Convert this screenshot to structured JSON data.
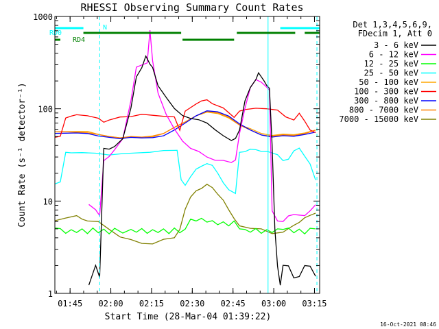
{
  "chart_data": {
    "type": "line",
    "title": "RHESSI Observing Summary Count Rates",
    "xlabel": "Start Time (28-Mar-04 01:39:22)",
    "ylabel": "Count Rate (s⁻¹ detector⁻¹)",
    "x_unit": "minutes after 01:39:22",
    "xlim": [
      0,
      97.5
    ],
    "ylim": [
      1,
      1000
    ],
    "yscale": "log",
    "x_ticks": [
      {
        "value": 5.6,
        "label": "01:45"
      },
      {
        "value": 20.6,
        "label": "02:00"
      },
      {
        "value": 35.6,
        "label": "02:15"
      },
      {
        "value": 50.6,
        "label": "02:30"
      },
      {
        "value": 65.6,
        "label": "02:45"
      },
      {
        "value": 80.6,
        "label": "03:00"
      },
      {
        "value": 95.6,
        "label": "03:15"
      }
    ],
    "y_ticks": [
      {
        "value": 1,
        "label": "1"
      },
      {
        "value": 10,
        "label": "10"
      },
      {
        "value": 100,
        "label": "100"
      },
      {
        "value": 1000,
        "label": "1000"
      }
    ],
    "legend_header": [
      "Det 1,3,4,5,6,9,",
      "FDecim 1, Att 0"
    ],
    "footer": "16-Oct-2021 08:46",
    "flags": [
      {
        "label": "RD0",
        "color": "#00ffff",
        "segments": [
          [
            0,
            10.5
          ],
          [
            83,
            97.5
          ]
        ]
      },
      {
        "label": "RD4",
        "color": "#008000",
        "segments": [
          [
            0,
            2
          ]
        ]
      },
      {
        "label": "N",
        "color": "#00ffff",
        "segments": []
      },
      {
        "label": "",
        "color": "#008000",
        "segments": [
          [
            10.5,
            46.5
          ],
          [
            67,
            88.5
          ],
          [
            92,
            97.5
          ]
        ]
      },
      {
        "label": "",
        "color": "#008000",
        "segments": [
          [
            47,
            66
          ]
        ]
      }
    ],
    "vertical_markers": [
      {
        "x": 16.5,
        "style": "dashed",
        "color": "#00ffff"
      },
      {
        "x": 78.5,
        "style": "solid",
        "color": "#00ffff"
      },
      {
        "x": 96.5,
        "style": "dashed",
        "color": "#00ffff"
      }
    ],
    "series": [
      {
        "name": "3 - 6 keV",
        "color": "#000000",
        "x": [
          12.5,
          15,
          16.5,
          18,
          20,
          22,
          25,
          28,
          30,
          32,
          33.5,
          35,
          36,
          38,
          41,
          44,
          47,
          50,
          53,
          56,
          59,
          62,
          65,
          66.5,
          68,
          70,
          72,
          74,
          75,
          77,
          78,
          79,
          80,
          81,
          82,
          83,
          84,
          86,
          88,
          90,
          92,
          94,
          96
        ],
        "y": [
          1.2,
          2,
          1.5,
          38,
          36,
          39,
          48,
          100,
          220,
          280,
          380,
          300,
          280,
          180,
          130,
          100,
          85,
          80,
          75,
          70,
          60,
          50,
          45,
          48,
          60,
          120,
          170,
          210,
          240,
          200,
          180,
          170,
          40,
          5,
          2,
          1.2,
          2,
          2,
          1.5,
          1.5,
          2,
          2,
          1.5
        ]
      },
      {
        "name": "6 - 12 keV",
        "color": "#ff00ff",
        "x": [
          12.5,
          15,
          16.5,
          18,
          20,
          22,
          25,
          28,
          30,
          32,
          34,
          35,
          36,
          38,
          41,
          44,
          47,
          50,
          53,
          56,
          59,
          62,
          65,
          66.5,
          68,
          70,
          72,
          74,
          76,
          78,
          79,
          80,
          82,
          84,
          86,
          88,
          90,
          92,
          94,
          96
        ],
        "y": [
          9,
          8,
          7,
          28,
          30,
          36,
          48,
          120,
          280,
          300,
          320,
          700,
          330,
          150,
          85,
          60,
          45,
          38,
          34,
          30,
          28,
          27,
          26,
          28,
          55,
          100,
          170,
          210,
          190,
          170,
          160,
          8,
          6,
          6,
          7,
          7,
          7,
          7,
          8,
          9
        ]
      },
      {
        "name": "12 - 25 keV",
        "color": "#00ff00",
        "x": [
          0,
          2,
          4,
          6,
          8,
          10,
          12,
          14,
          16,
          18,
          20,
          22,
          25,
          28,
          30,
          32,
          34,
          36,
          38,
          40,
          42,
          44,
          46,
          48,
          50,
          52,
          54,
          56,
          58,
          60,
          62,
          64,
          66,
          68,
          70,
          72,
          74,
          76,
          78,
          80,
          82,
          84,
          86,
          88,
          90,
          92,
          94,
          96
        ],
        "y": [
          5,
          5,
          4.5,
          5,
          4.5,
          5,
          4.5,
          5,
          4.5,
          5,
          4.5,
          5,
          4.5,
          5,
          4.5,
          5,
          4.5,
          5,
          4.5,
          5,
          4.5,
          5,
          4.5,
          5,
          6.5,
          6,
          6.5,
          6,
          6,
          5.5,
          6,
          5.5,
          6,
          5,
          5,
          4.5,
          5,
          4.5,
          5,
          4.5,
          5,
          5,
          5,
          4.5,
          5,
          4.5,
          5,
          5
        ]
      },
      {
        "name": "25 - 50 keV",
        "color": "#00ffff",
        "x": [
          0,
          2,
          4,
          6,
          10,
          15,
          20,
          25,
          30,
          35,
          40,
          45,
          46.5,
          48,
          50,
          52,
          54,
          56,
          58,
          60,
          62,
          64,
          66.5,
          68,
          70,
          72,
          74,
          76,
          78,
          80,
          82,
          84,
          86,
          88,
          90,
          92,
          94,
          96
        ],
        "y": [
          15,
          16,
          34,
          34,
          33,
          33,
          32,
          32,
          33,
          34,
          36,
          35,
          17,
          15,
          18,
          22,
          24,
          26,
          24,
          20,
          16,
          13,
          12,
          34,
          35,
          36,
          36,
          35,
          34,
          33,
          32,
          28,
          28,
          35,
          38,
          30,
          25,
          17
        ]
      },
      {
        "name": "50 - 100 keV",
        "color": "#ffa500",
        "x": [
          0,
          4,
          8,
          12,
          16,
          20,
          24,
          28,
          32,
          36,
          40,
          44,
          48,
          52,
          56,
          60,
          64,
          68,
          72,
          76,
          80,
          84,
          88,
          92,
          96
        ],
        "y": [
          55,
          56,
          57,
          58,
          52,
          50,
          49,
          48,
          48,
          50,
          55,
          62,
          72,
          85,
          90,
          88,
          80,
          68,
          60,
          54,
          52,
          52,
          52,
          55,
          60
        ]
      },
      {
        "name": "100 - 300 keV",
        "color": "#ff0000",
        "x": [
          0,
          2,
          4,
          6,
          8,
          12,
          16,
          18,
          20,
          24,
          28,
          32,
          36,
          40,
          44,
          46,
          48,
          52,
          54,
          56,
          58,
          62,
          66,
          68,
          70,
          74,
          78,
          82,
          85,
          88,
          90,
          92,
          94,
          96
        ],
        "y": [
          48,
          50,
          80,
          85,
          85,
          84,
          80,
          70,
          75,
          82,
          84,
          86,
          85,
          84,
          80,
          58,
          95,
          115,
          120,
          125,
          115,
          100,
          80,
          95,
          100,
          100,
          100,
          98,
          80,
          75,
          90,
          75,
          58,
          55
        ]
      },
      {
        "name": "300 - 800 keV",
        "color": "#0000ff",
        "x": [
          0,
          4,
          8,
          12,
          16,
          20,
          24,
          28,
          32,
          36,
          40,
          44,
          48,
          52,
          56,
          60,
          64,
          68,
          72,
          76,
          80,
          84,
          88,
          92,
          96
        ],
        "y": [
          53,
          54,
          55,
          55,
          50,
          49,
          48,
          48,
          48,
          49,
          52,
          58,
          70,
          85,
          93,
          92,
          84,
          70,
          58,
          52,
          50,
          50,
          50,
          53,
          57
        ]
      },
      {
        "name": "800 - 7000 keV",
        "color": "#ff8000",
        "x": [
          0,
          4,
          8,
          12,
          16,
          20,
          24,
          28,
          32,
          36,
          40,
          44,
          48,
          52,
          56,
          60,
          64,
          68,
          72,
          76,
          80,
          84,
          88,
          92,
          96
        ],
        "y": [
          55,
          56,
          56,
          56,
          52,
          50,
          49,
          49,
          49,
          51,
          55,
          62,
          72,
          85,
          92,
          90,
          82,
          68,
          58,
          52,
          51,
          51,
          51,
          54,
          60
        ]
      },
      {
        "name": "7000 - 15000 keV",
        "color": "#808000",
        "x": [
          0,
          4,
          8,
          10,
          12,
          16,
          20,
          24,
          28,
          32,
          36,
          40,
          44,
          46,
          48,
          50,
          52,
          54,
          56,
          58,
          60,
          62,
          64,
          66,
          68,
          72,
          76,
          80,
          84,
          86,
          88,
          90,
          92,
          94,
          96
        ],
        "y": [
          6,
          6.5,
          7,
          6.5,
          6,
          6,
          5,
          4,
          3.8,
          3.5,
          3.5,
          3.8,
          4,
          5,
          8,
          11,
          13,
          14,
          15,
          14,
          12,
          10,
          8,
          6.5,
          5.5,
          5,
          5,
          4.5,
          4.5,
          5,
          5.5,
          6,
          6.5,
          7,
          7.5
        ]
      }
    ]
  }
}
